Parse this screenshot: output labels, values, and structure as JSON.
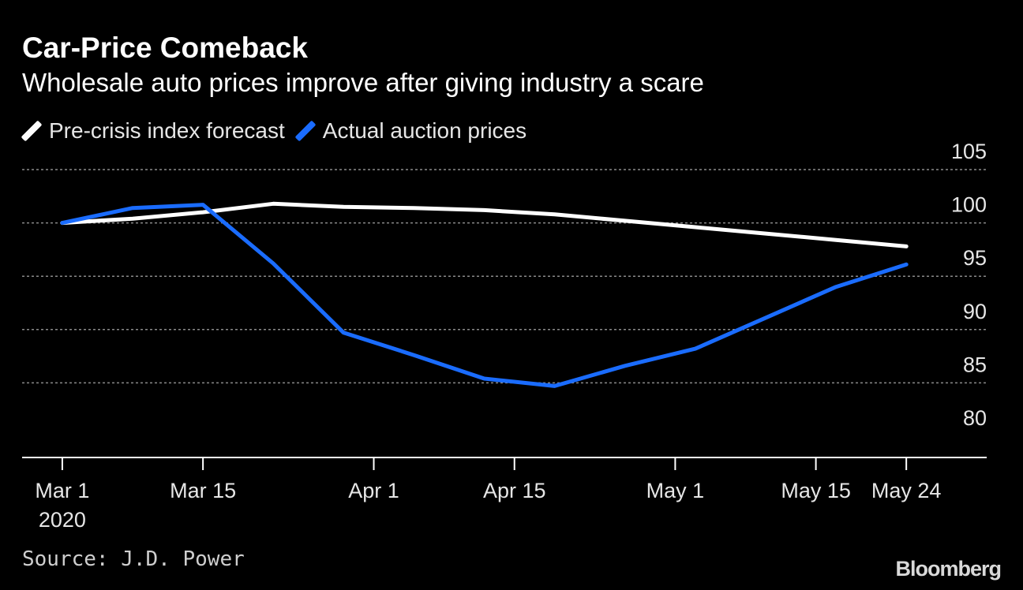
{
  "colors": {
    "background": "#000000",
    "forecast": "#ffffff",
    "actual": "#1a6cff",
    "grid": "#8a8a8a"
  },
  "chart_data": {
    "type": "line",
    "title": "Car-Price Comeback",
    "subtitle": "Wholesale auto prices improve after giving industry a scare",
    "source": "Source: J.D. Power",
    "brand": "Bloomberg",
    "legend_position": "top-left",
    "grid": true,
    "ylim": [
      78,
      107
    ],
    "y_ticks": [
      80,
      85,
      90,
      95,
      100,
      105
    ],
    "x_ticks": [
      {
        "day": 1,
        "label": "Mar 1",
        "sublabel": "2020"
      },
      {
        "day": 15,
        "label": "Mar 15",
        "sublabel": ""
      },
      {
        "day": 32,
        "label": "Apr 1",
        "sublabel": ""
      },
      {
        "day": 46,
        "label": "Apr 15",
        "sublabel": ""
      },
      {
        "day": 62,
        "label": "May 1",
        "sublabel": ""
      },
      {
        "day": 76,
        "label": "May 15",
        "sublabel": ""
      },
      {
        "day": 85,
        "label": "May 24",
        "sublabel": ""
      }
    ],
    "xlim": [
      -3,
      93
    ],
    "series": [
      {
        "name": "Pre-crisis index forecast",
        "color": "#ffffff",
        "x": [
          1,
          8,
          15,
          22,
          29,
          36,
          43,
          50,
          57,
          64,
          71,
          78,
          85
        ],
        "values": [
          100,
          100.4,
          101,
          101.8,
          101.5,
          101.4,
          101.2,
          100.8,
          100.2,
          99.6,
          99,
          98.4,
          97.8
        ]
      },
      {
        "name": "Actual auction prices",
        "color": "#1a6cff",
        "x": [
          1,
          8,
          15,
          22,
          29,
          36,
          43,
          50,
          57,
          64,
          71,
          78,
          85
        ],
        "values": [
          100,
          101.4,
          101.7,
          96.2,
          89.7,
          87.6,
          85.4,
          84.7,
          86.6,
          88.2,
          91.1,
          94,
          96.1
        ]
      }
    ]
  }
}
